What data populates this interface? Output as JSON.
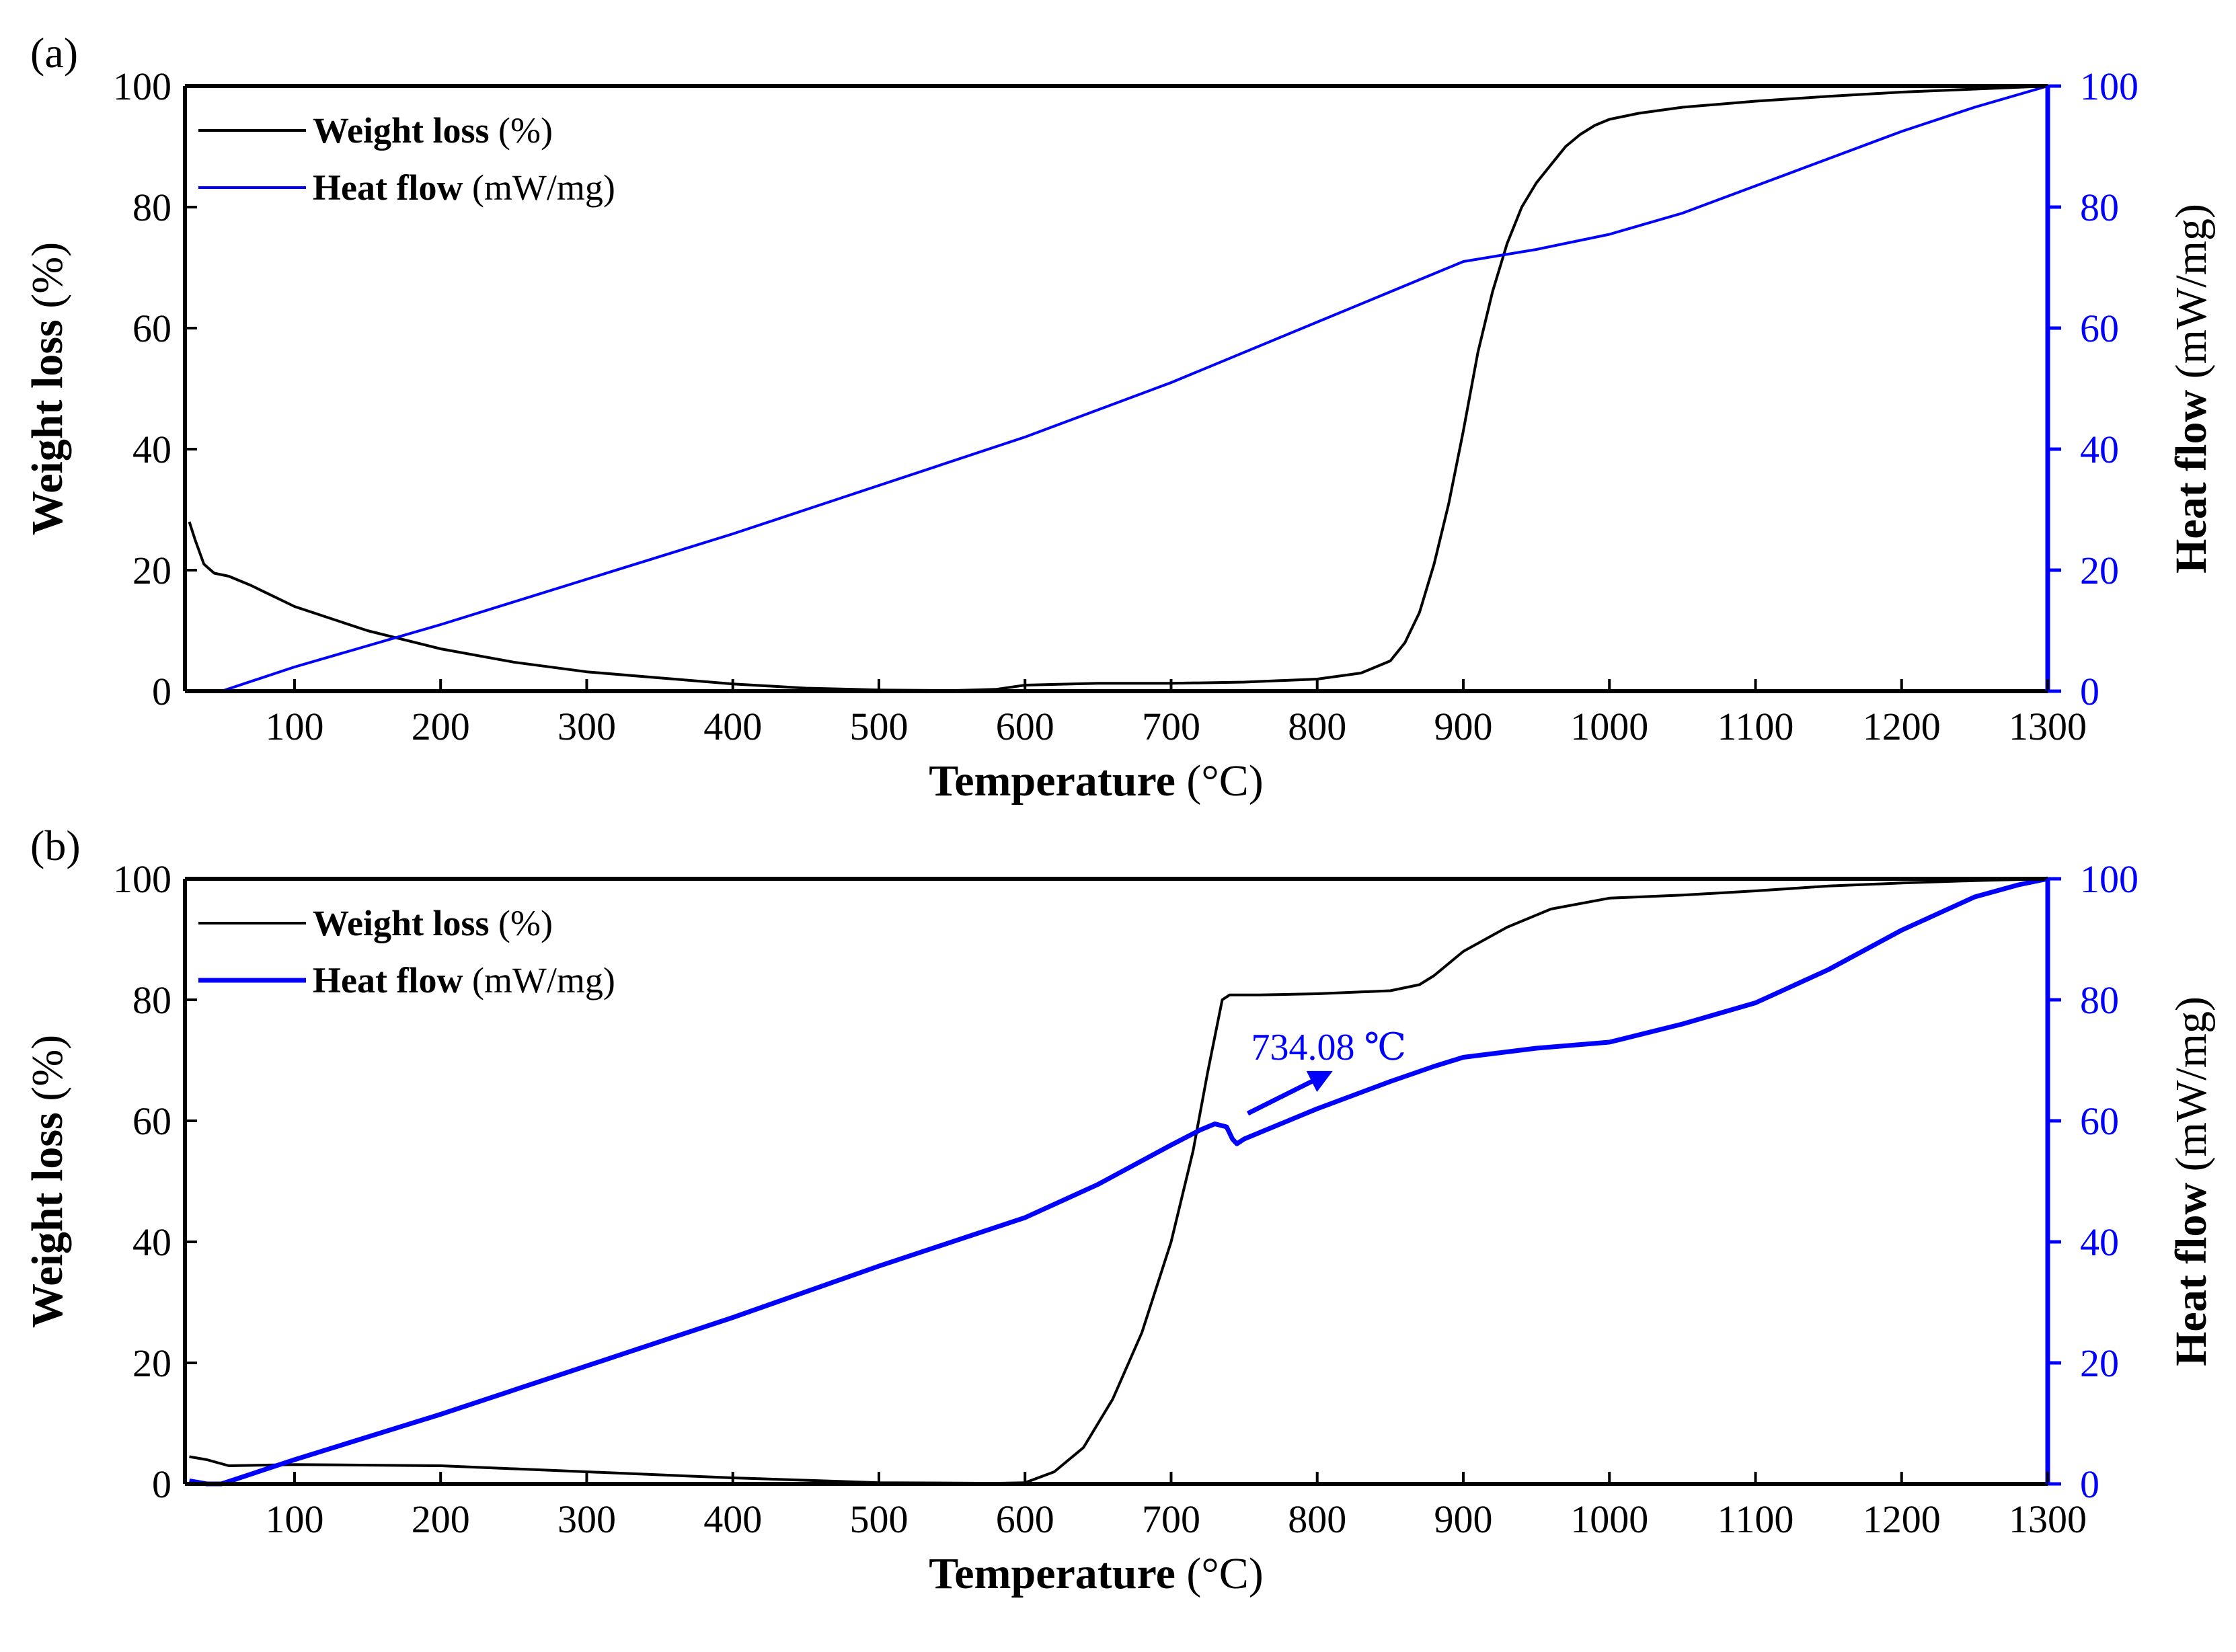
{
  "chart_data": [
    {
      "panel_label": "(a)",
      "type": "line",
      "xlabel": "Temperature",
      "xlabel_unit": "(°C)",
      "ylabel_left": "Weight loss",
      "ylabel_left_unit": "(%)",
      "ylabel_right": "Heat flow",
      "ylabel_right_unit": "(mW/mg)",
      "xlim": [
        25,
        1300
      ],
      "ylim_left": [
        0,
        100
      ],
      "ylim_right": [
        0,
        100
      ],
      "xticks": [
        100,
        200,
        300,
        400,
        500,
        600,
        700,
        800,
        900,
        1000,
        1100,
        1200,
        1300
      ],
      "yticks_left": [
        0,
        20,
        40,
        60,
        80,
        100
      ],
      "yticks_right": [
        0,
        20,
        40,
        60,
        80,
        100
      ],
      "legend": [
        {
          "label": "Weight loss",
          "unit": "(%)",
          "color": "#000000"
        },
        {
          "label": "Heat flow",
          "unit": "(mW/mg)",
          "color": "#0000ff"
        }
      ],
      "series": [
        {
          "name": "Weight loss",
          "axis": "left",
          "color": "#000000",
          "x": [
            28,
            32,
            38,
            45,
            55,
            70,
            100,
            150,
            200,
            250,
            300,
            350,
            400,
            450,
            500,
            550,
            580,
            600,
            650,
            700,
            750,
            800,
            830,
            850,
            860,
            870,
            880,
            890,
            900,
            910,
            920,
            930,
            940,
            950,
            960,
            970,
            980,
            990,
            1000,
            1020,
            1050,
            1100,
            1150,
            1200,
            1250,
            1300
          ],
          "y": [
            28,
            25,
            21,
            19.5,
            19,
            17.5,
            14,
            10,
            7,
            4.8,
            3.2,
            2.2,
            1.2,
            0.5,
            0.2,
            0.1,
            0.3,
            1.0,
            1.3,
            1.3,
            1.5,
            2.0,
            3.0,
            5.0,
            8,
            13,
            21,
            31,
            43,
            56,
            66,
            74,
            80,
            84,
            87,
            90,
            92,
            93.5,
            94.5,
            95.5,
            96.5,
            97.5,
            98.3,
            99,
            99.5,
            100
          ]
        },
        {
          "name": "Heat flow",
          "axis": "right",
          "color": "#0000ff",
          "x": [
            28,
            40,
            50,
            100,
            200,
            300,
            400,
            500,
            600,
            700,
            800,
            850,
            880,
            900,
            950,
            1000,
            1050,
            1100,
            1150,
            1200,
            1250,
            1300
          ],
          "y": [
            0,
            0,
            0,
            4,
            11,
            18.5,
            26,
            34,
            42,
            51,
            61,
            66,
            69,
            71,
            73,
            75.5,
            79,
            83.5,
            88,
            92.5,
            96.5,
            100
          ]
        }
      ]
    },
    {
      "panel_label": "(b)",
      "type": "line",
      "xlabel": "Temperature",
      "xlabel_unit": "(°C)",
      "ylabel_left": "Weight loss",
      "ylabel_left_unit": "(%)",
      "ylabel_right": "Heat flow",
      "ylabel_right_unit": "(mW/mg)",
      "xlim": [
        25,
        1300
      ],
      "ylim_left": [
        0,
        100
      ],
      "ylim_right": [
        0,
        100
      ],
      "xticks": [
        100,
        200,
        300,
        400,
        500,
        600,
        700,
        800,
        900,
        1000,
        1100,
        1200,
        1300
      ],
      "yticks_left": [
        0,
        20,
        40,
        60,
        80,
        100
      ],
      "yticks_right": [
        0,
        20,
        40,
        60,
        80,
        100
      ],
      "legend": [
        {
          "label": "Weight loss",
          "unit": "(%)",
          "color": "#000000"
        },
        {
          "label": "Heat flow",
          "unit": "(mW/mg)",
          "color": "#0000ff"
        }
      ],
      "annotation": {
        "text": "734.08 ℃",
        "x": 734.08,
        "y": 59
      },
      "series": [
        {
          "name": "Weight loss",
          "axis": "left",
          "color": "#000000",
          "x": [
            28,
            40,
            55,
            100,
            200,
            300,
            400,
            500,
            580,
            600,
            620,
            640,
            660,
            680,
            700,
            715,
            725,
            735,
            740,
            760,
            800,
            850,
            870,
            880,
            900,
            930,
            960,
            1000,
            1050,
            1100,
            1150,
            1200,
            1250,
            1300
          ],
          "y": [
            4.5,
            4,
            3,
            3.2,
            3,
            2,
            1,
            0.2,
            0.1,
            0.2,
            2,
            6,
            14,
            25,
            40,
            55,
            68,
            80,
            80.8,
            80.8,
            81,
            81.5,
            82.5,
            84,
            88,
            92,
            95,
            96.8,
            97.3,
            98,
            98.8,
            99.3,
            99.7,
            100
          ]
        },
        {
          "name": "Heat flow",
          "axis": "right",
          "color": "#0000ff",
          "x": [
            28,
            40,
            50,
            100,
            200,
            300,
            400,
            500,
            600,
            650,
            700,
            720,
            730,
            738,
            742,
            745,
            750,
            800,
            850,
            880,
            900,
            950,
            1000,
            1050,
            1100,
            1150,
            1200,
            1250,
            1280,
            1300
          ],
          "y": [
            0.5,
            0,
            0,
            4,
            11.5,
            19.5,
            27.5,
            36,
            44,
            49.5,
            56,
            58.5,
            59.5,
            59,
            57,
            56.2,
            57,
            62,
            66.5,
            69,
            70.5,
            72,
            73,
            76,
            79.5,
            85,
            91.5,
            97,
            99,
            100
          ]
        }
      ]
    }
  ]
}
